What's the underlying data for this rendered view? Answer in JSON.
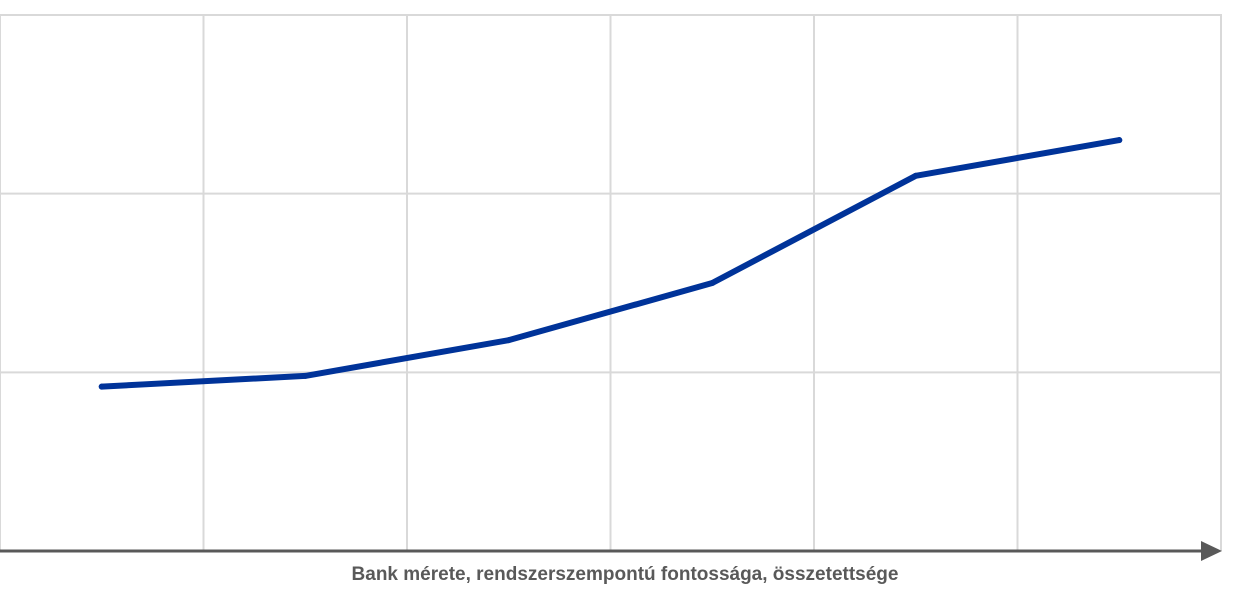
{
  "chart_data": {
    "type": "line",
    "title": "",
    "xlabel": "Bank mérete, rendszerszempontú fontossága, összetettsége",
    "ylabel": "",
    "x": [
      1,
      2,
      3,
      4,
      5,
      6
    ],
    "ylim": [
      0,
      3
    ],
    "grid": true,
    "legend": "none",
    "series": [
      {
        "values": [
          0.92,
          0.98,
          1.18,
          1.5,
          2.1,
          2.3
        ],
        "color": "#003399"
      }
    ]
  },
  "colors": {
    "series": "#003399",
    "grid": "#d9d9d9",
    "axis": "#595959",
    "label": "#595959"
  }
}
